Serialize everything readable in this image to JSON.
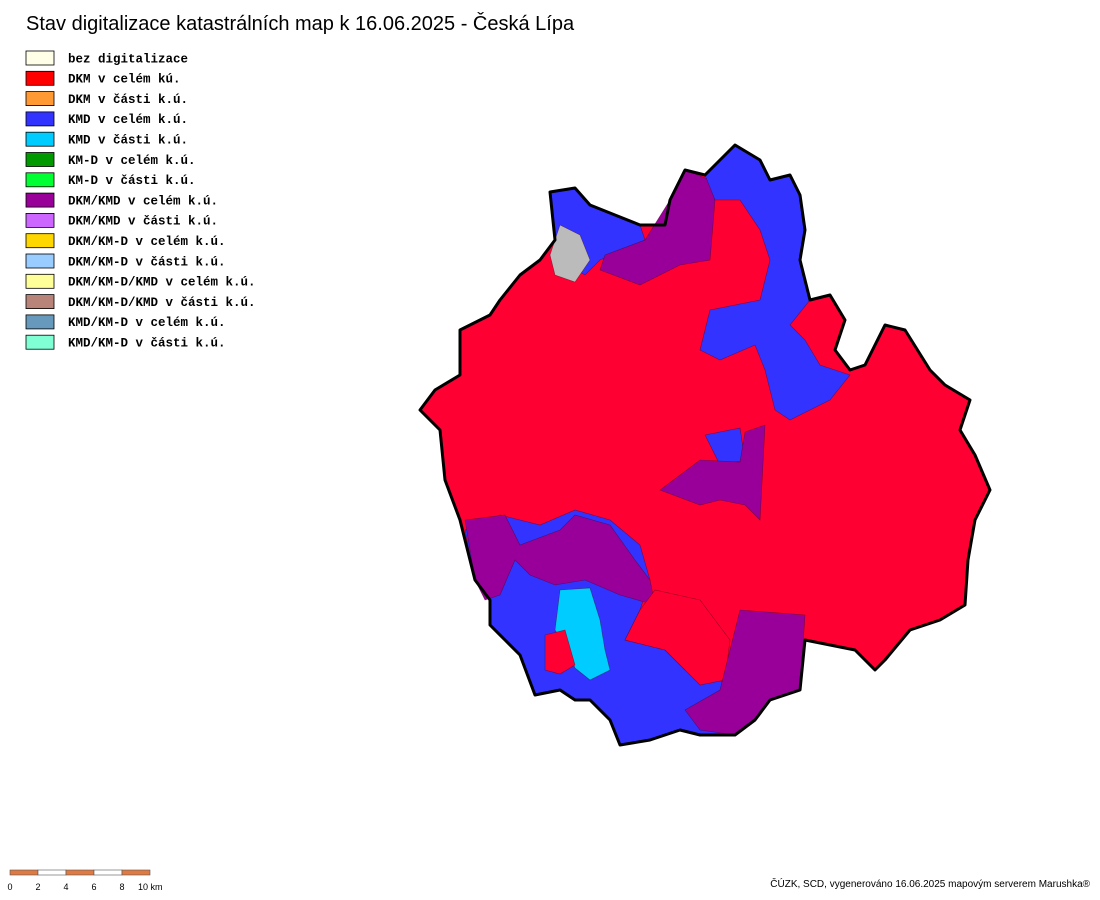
{
  "title": "Stav digitalizace katastrálních map k 16.06.2025 - Česká Lípa",
  "legend": [
    {
      "label": "bez digitalizace",
      "color": "#ffffe8"
    },
    {
      "label": "DKM v celém kú.",
      "color": "#ff0000"
    },
    {
      "label": "DKM v části k.ú.",
      "color": "#ff9933"
    },
    {
      "label": "KMD v celém k.ú.",
      "color": "#3333ff"
    },
    {
      "label": "KMD v části k.ú.",
      "color": "#00ccff"
    },
    {
      "label": "KM-D v celém k.ú.",
      "color": "#009900"
    },
    {
      "label": "KM-D v části k.ú.",
      "color": "#00ff33"
    },
    {
      "label": "DKM/KMD v celém k.ú.",
      "color": "#990099"
    },
    {
      "label": "DKM/KMD v části k.ú.",
      "color": "#cc66ff"
    },
    {
      "label": "DKM/KM-D v celém k.ú.",
      "color": "#ffd700"
    },
    {
      "label": "DKM/KM-D v části k.ú.",
      "color": "#99ccff"
    },
    {
      "label": "DKM/KM-D/KMD v celém k.ú.",
      "color": "#ffff99"
    },
    {
      "label": "DKM/KM-D/KMD v části k.ú.",
      "color": "#b8847a"
    },
    {
      "label": "KMD/KM-D v celém k.ú.",
      "color": "#6699bb"
    },
    {
      "label": "KMD/KM-D v části k.ú.",
      "color": "#80ffd4"
    }
  ],
  "scale": {
    "labels": [
      "0",
      "2",
      "4",
      "6",
      "8",
      "10 km"
    ]
  },
  "credit": "ČÚZK, SCD, vygenerováno 16.06.2025 mapovým serverem Marushka®"
}
